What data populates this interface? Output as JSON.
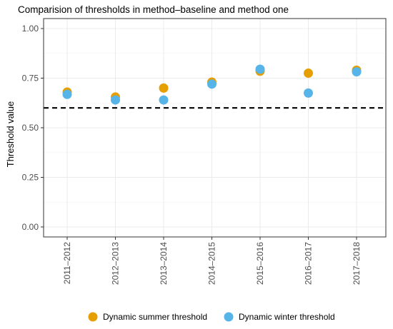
{
  "chart_data": {
    "type": "scatter",
    "title": "Comparision of thresholds in method–baseline and method one",
    "ylabel": "Threshold value",
    "xlabel": "",
    "categories": [
      "2011–2012",
      "2012–2013",
      "2013–2014",
      "2014–2015",
      "2015–2016",
      "2016–2017",
      "2017–2018"
    ],
    "ylim": [
      0.0,
      1.0
    ],
    "yticks": [
      0.0,
      0.25,
      0.5,
      0.75,
      1.0
    ],
    "ytick_labels": [
      "0.00",
      "0.25",
      "0.50",
      "0.75",
      "1.00"
    ],
    "reference_line": {
      "y": 0.6,
      "style": "dashed",
      "color": "#000000"
    },
    "grid": true,
    "legend_position": "bottom",
    "series": [
      {
        "name": "Dynamic summer threshold",
        "color": "#E69F00",
        "values": [
          0.68,
          0.655,
          0.7,
          0.73,
          0.785,
          0.775,
          0.79
        ]
      },
      {
        "name": "Dynamic winter threshold",
        "color": "#56B4E9",
        "values": [
          0.668,
          0.64,
          0.64,
          0.72,
          0.795,
          0.675,
          0.782
        ]
      }
    ]
  }
}
